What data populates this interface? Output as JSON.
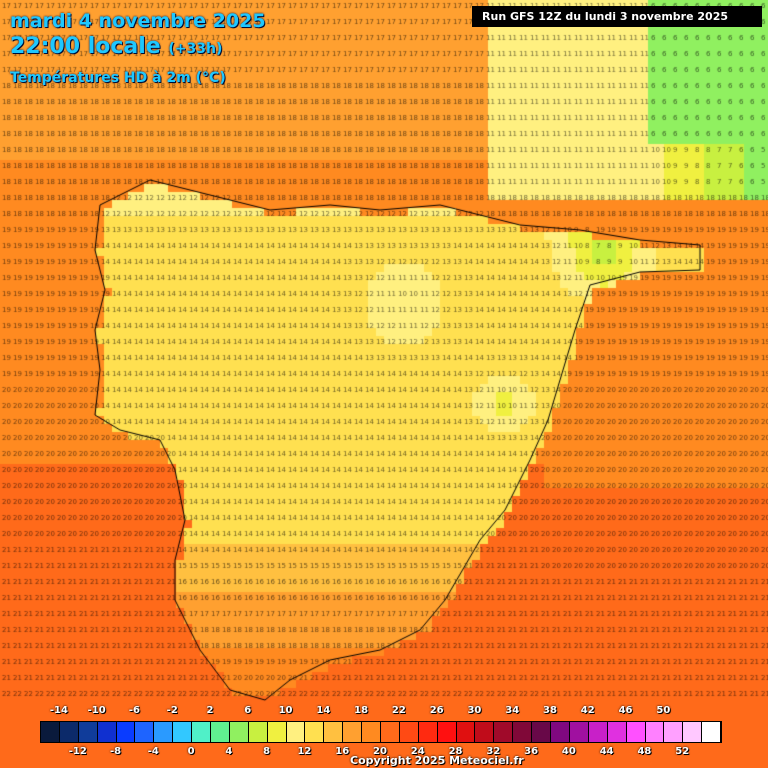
{
  "header": {
    "date_line": "mardi 4 novembre 2025",
    "time_line": "22:00 locale",
    "time_offset": "(+33h)",
    "variable": "Températures HD à 2m (°C)",
    "run": "Run GFS 12Z du lundi 3 novembre 2025"
  },
  "footer": {
    "copyright": "Copyright 2025 Meteociel.fr"
  },
  "legend": {
    "top_labels": [
      "-14",
      "-10",
      "-6",
      "-2",
      "2",
      "6",
      "10",
      "14",
      "18",
      "22",
      "26",
      "30",
      "34",
      "38",
      "42",
      "46",
      "50"
    ],
    "bottom_labels": [
      "-12",
      "-8",
      "-4",
      "0",
      "4",
      "8",
      "12",
      "16",
      "20",
      "24",
      "28",
      "32",
      "36",
      "40",
      "44",
      "48",
      "52"
    ],
    "colors": [
      "#0a1a3c",
      "#0c2a6a",
      "#103c9a",
      "#1030d0",
      "#0a3cff",
      "#1e64ff",
      "#2a9aff",
      "#32c8ff",
      "#50f0c8",
      "#60f090",
      "#90f060",
      "#c8f040",
      "#f0f040",
      "#fff080",
      "#ffe050",
      "#ffc040",
      "#ffa030",
      "#ff8a20",
      "#ff6a1a",
      "#ff4a14",
      "#ff2a10",
      "#ff1010",
      "#e01010",
      "#c00c1a",
      "#a00a2a",
      "#800838",
      "#680848",
      "#800880",
      "#a010a0",
      "#c820c8",
      "#e030e0",
      "#ff50ff",
      "#ff80ff",
      "#ffa0ff",
      "#ffc8ff",
      "#ffffff"
    ]
  },
  "icons": {
    "scale": "color-scale-bar",
    "coast": "coastline-outline"
  }
}
